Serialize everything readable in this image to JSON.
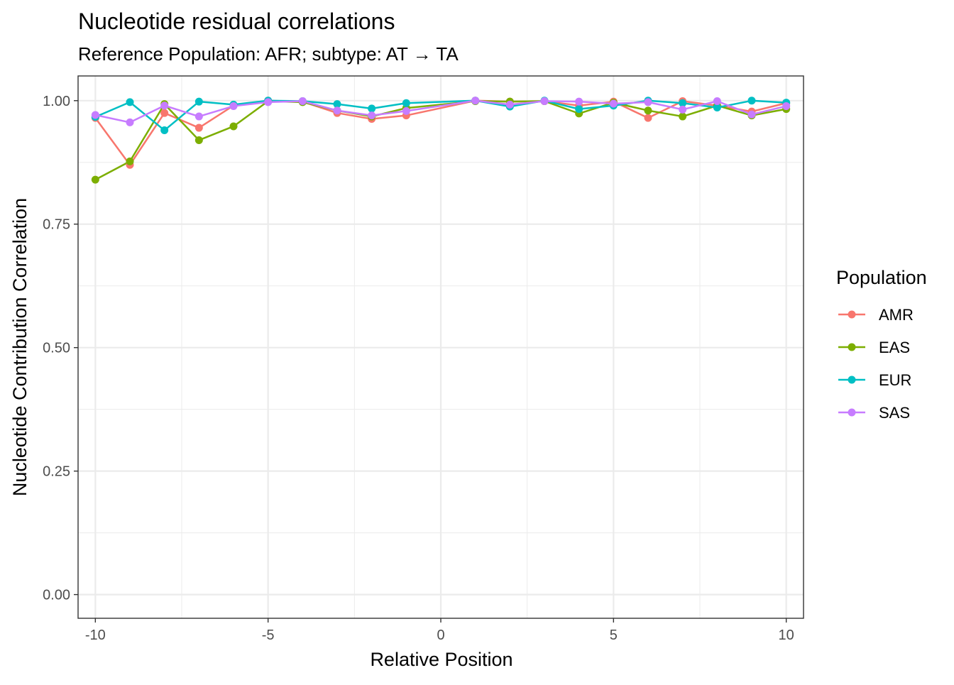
{
  "chart_data": {
    "type": "line",
    "title": "Nucleotide residual correlations",
    "subtitle": "Reference Population: AFR; subtype: AT → TA",
    "xlabel": "Relative Position",
    "ylabel": "Nucleotide Contribution Correlation",
    "xlim": [
      -10.5,
      10.5
    ],
    "ylim": [
      -0.048,
      1.05
    ],
    "x_ticks": [
      -10,
      -5,
      0,
      5,
      10
    ],
    "x_tick_labels": [
      "-10",
      "-5",
      "0",
      "5",
      "10"
    ],
    "y_ticks": [
      0,
      0.25,
      0.5,
      0.75,
      1.0
    ],
    "y_tick_labels": [
      "0.00",
      "0.25",
      "0.50",
      "0.75",
      "1.00"
    ],
    "grid": true,
    "legend": {
      "title": "Population",
      "position": "right"
    },
    "x": [
      -10,
      -9,
      -8,
      -7,
      -6,
      -5,
      -4,
      -3,
      -2,
      -1,
      1,
      2,
      3,
      4,
      5,
      6,
      7,
      8,
      9,
      10
    ],
    "series": [
      {
        "name": "AMR",
        "color": "#F8766D",
        "values": [
          0.965,
          0.87,
          0.975,
          0.945,
          0.99,
          1.0,
          0.998,
          0.975,
          0.963,
          0.97,
          1.0,
          0.998,
          0.999,
          0.99,
          0.998,
          0.965,
          0.999,
          0.99,
          0.978,
          0.995
        ]
      },
      {
        "name": "EAS",
        "color": "#7CAE00",
        "values": [
          0.84,
          0.877,
          0.993,
          0.92,
          0.948,
          0.999,
          0.997,
          0.98,
          0.968,
          0.985,
          0.999,
          0.998,
          0.999,
          0.974,
          0.996,
          0.98,
          0.968,
          0.99,
          0.97,
          0.983
        ]
      },
      {
        "name": "EUR",
        "color": "#00BFC4",
        "values": [
          0.967,
          0.997,
          0.94,
          0.998,
          0.992,
          1.0,
          0.999,
          0.993,
          0.984,
          0.995,
          1.0,
          0.988,
          1.0,
          0.983,
          0.99,
          1.0,
          0.995,
          0.986,
          1.0,
          0.996
        ]
      },
      {
        "name": "SAS",
        "color": "#C77CFF",
        "values": [
          0.971,
          0.956,
          0.99,
          0.968,
          0.989,
          0.997,
          0.999,
          0.98,
          0.97,
          0.979,
          1.0,
          0.992,
          0.999,
          0.998,
          0.994,
          0.997,
          0.982,
          0.999,
          0.972,
          0.989
        ]
      }
    ]
  }
}
